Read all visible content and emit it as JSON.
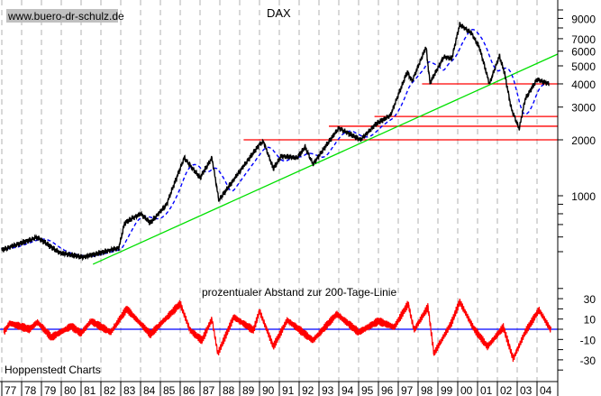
{
  "chart_data": [
    {
      "type": "line",
      "title": "DAX",
      "watermark": "www.buero-dr-schulz.de",
      "y_scale": "log",
      "ylim": [
        400,
        10000
      ],
      "xlim": [
        1977,
        2005
      ],
      "y_ticks": [
        "9000",
        "7000",
        "6000",
        "5000",
        "4000",
        "3000",
        "2000",
        "1000"
      ],
      "y_tick_values": [
        9000,
        7000,
        6000,
        5000,
        4000,
        3000,
        2000,
        1000
      ],
      "grid": "vertical dashed per year",
      "colors": {
        "price": "#000000",
        "moving_average": "#0000ff",
        "trendline": "#00e000",
        "support_lines": "#ff0000"
      },
      "series": [
        {
          "x": [
            1977.0,
            1978.8,
            1979.9,
            1981.1,
            1982.9,
            1983.2,
            1984.0,
            1984.5,
            1985.3,
            1986.2,
            1987.0,
            1987.6,
            1987.95,
            1988.9,
            1990.0,
            1990.2,
            1990.7,
            1991.1,
            1991.9,
            1992.3,
            1992.7,
            1993.5,
            1994.0,
            1995.1,
            1995.9,
            1996.6,
            1997.45,
            1997.7,
            1998.4,
            1998.6,
            1999.3,
            1999.7,
            2000.1,
            2000.7,
            2001.1,
            2001.6,
            2002.1,
            2002.35,
            2002.7,
            2003.1,
            2003.4,
            2004.0,
            2004.6
          ],
          "y": [
            511,
            598,
            494,
            467,
            523,
            715,
            800,
            715,
            894,
            1599,
            1250,
            1599,
            946,
            1307,
            1890,
            1955,
            1398,
            1635,
            1599,
            1828,
            1479,
            1955,
            2313,
            2000,
            2446,
            2704,
            4630,
            4140,
            6320,
            4050,
            5590,
            5470,
            8360,
            7480,
            6250,
            4000,
            5650,
            4630,
            2955,
            2288,
            3305,
            4230,
            4000
          ]
        },
        {
          "type": "moving-average",
          "style": "dashed",
          "window_days": 200
        }
      ],
      "trendline": {
        "from": [
          1981.6,
          428
        ],
        "to": [
          2005.05,
          5790
        ]
      },
      "horizontal_lines": [
        {
          "value": 2000,
          "from_year": 1989.2
        },
        {
          "value": 2366,
          "from_year": 1993.5
        },
        {
          "value": 2670,
          "from_year": 1995.8
        },
        {
          "value": 4000,
          "from_year": 1998.2
        }
      ]
    },
    {
      "type": "line",
      "title": "prozentualer Abstand zur 200-Tage-Linie",
      "ylim": [
        -45,
        40
      ],
      "y_ticks": [
        "30",
        "10",
        "-10",
        "-30"
      ],
      "y_tick_values": [
        30,
        10,
        -10,
        -30
      ],
      "zero_line_color": "#0000ff",
      "series_color": "#ff0000",
      "x": [
        1977.1,
        1977.4,
        1978.4,
        1978.8,
        1979.5,
        1980.5,
        1981.0,
        1981.5,
        1982.5,
        1983.3,
        1984.5,
        1986.0,
        1986.5,
        1987.1,
        1987.6,
        1987.9,
        1988.7,
        1989.7,
        1990.0,
        1990.7,
        1991.4,
        1992.7,
        1993.9,
        1995.0,
        1996.0,
        1996.8,
        1997.5,
        1997.8,
        1998.5,
        1998.8,
        1999.7,
        2000.1,
        2000.8,
        2001.5,
        2002.3,
        2002.8,
        2003.4,
        2004.1,
        2004.7
      ],
      "y": [
        -3,
        6,
        0,
        7,
        -8,
        3,
        -4,
        8,
        -3,
        20,
        -5,
        25,
        -1,
        -11,
        10,
        -24,
        12,
        -1,
        18,
        -17,
        9,
        -11,
        15,
        -3,
        8,
        2,
        25,
        -1,
        22,
        -24,
        7,
        27,
        1,
        -17,
        2,
        -29,
        -3,
        19,
        -1
      ]
    }
  ],
  "x_axis": {
    "tick_labels": [
      "77",
      "78",
      "79",
      "80",
      "81",
      "82",
      "83",
      "84",
      "85",
      "86",
      "87",
      "88",
      "89",
      "90",
      "91",
      "92",
      "93",
      "94",
      "95",
      "96",
      "97",
      "98",
      "99",
      "00",
      "01",
      "02",
      "03",
      "04"
    ]
  },
  "footer": {
    "source": "Hoppenstedt Charts"
  }
}
